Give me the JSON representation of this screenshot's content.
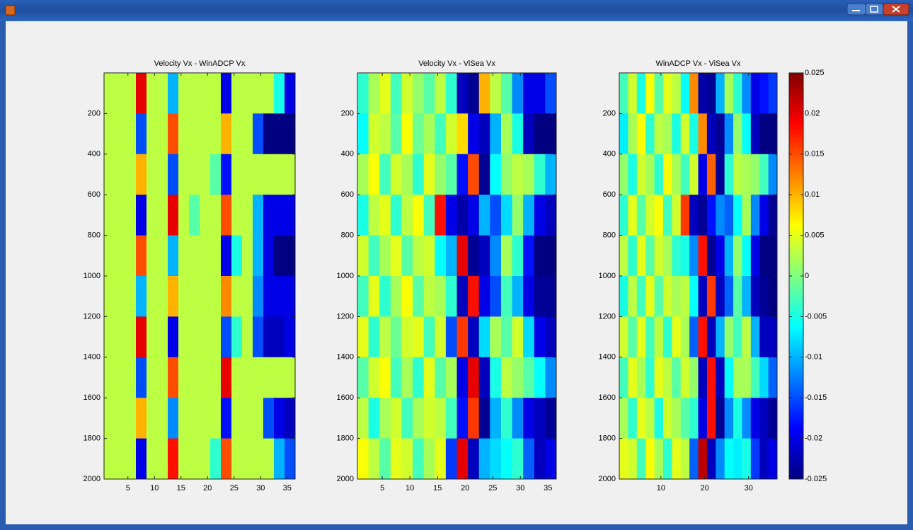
{
  "chart_data": [
    {
      "type": "heatmap",
      "title": "Velocity Vx - WinADCP Vx",
      "colormap": "jet",
      "clim": [
        -0.025,
        0.025
      ],
      "y_reversed": true,
      "xlim": [
        0.5,
        36.5
      ],
      "ylim": [
        0,
        2000
      ],
      "xticks": [
        5,
        10,
        15,
        20,
        25,
        30,
        35
      ],
      "yticks": [
        200,
        400,
        600,
        800,
        1000,
        1200,
        1400,
        1600,
        1800,
        2000
      ],
      "x": [
        1.5,
        3.5,
        5.5,
        7.5,
        9.5,
        11.5,
        13.5,
        15.5,
        17.5,
        19.5,
        21.5,
        23.5,
        25.5,
        27.5,
        29.5,
        31.5,
        33.5,
        35.5
      ],
      "y": [
        100,
        300,
        500,
        700,
        900,
        1100,
        1300,
        1500,
        1700,
        1900
      ],
      "values": [
        [
          0.003,
          0.003,
          0.003,
          0.02,
          0.003,
          0.003,
          -0.01,
          0.003,
          0.003,
          0.003,
          0.003,
          -0.02,
          0.003,
          0.003,
          0.003,
          0.003,
          -0.005,
          -0.02
        ],
        [
          0.003,
          0.003,
          0.003,
          -0.015,
          0.003,
          0.003,
          0.015,
          0.003,
          0.003,
          0.003,
          0.003,
          0.01,
          0.003,
          0.003,
          -0.015,
          -0.025,
          -0.025,
          -0.025
        ],
        [
          0.003,
          0.003,
          0.003,
          0.01,
          0.003,
          0.003,
          -0.015,
          0.003,
          0.003,
          0.003,
          -0.002,
          -0.018,
          0.003,
          0.003,
          0.003,
          0.003,
          0.003,
          0.003
        ],
        [
          0.003,
          0.003,
          0.003,
          -0.02,
          0.003,
          0.003,
          0.02,
          0.003,
          -0.002,
          0.003,
          0.003,
          0.015,
          0.003,
          0.003,
          -0.01,
          -0.02,
          -0.02,
          -0.02
        ],
        [
          0.003,
          0.003,
          0.003,
          0.015,
          0.003,
          0.003,
          -0.01,
          0.003,
          0.003,
          0.003,
          0.003,
          -0.02,
          -0.005,
          0.003,
          -0.01,
          -0.02,
          -0.025,
          -0.025
        ],
        [
          0.003,
          0.003,
          0.003,
          -0.01,
          0.003,
          0.003,
          0.01,
          0.003,
          0.003,
          0.003,
          0.003,
          0.012,
          0.003,
          0.003,
          -0.012,
          -0.02,
          -0.02,
          -0.02
        ],
        [
          0.003,
          0.003,
          0.003,
          0.02,
          0.003,
          0.003,
          -0.02,
          0.003,
          0.003,
          0.003,
          0.003,
          -0.015,
          -0.004,
          0.003,
          -0.015,
          -0.022,
          -0.022,
          -0.02
        ],
        [
          0.003,
          0.003,
          0.003,
          -0.015,
          0.003,
          0.003,
          0.015,
          0.003,
          0.003,
          0.003,
          0.003,
          0.02,
          0.003,
          0.003,
          0.003,
          0.003,
          0.003,
          0.003
        ],
        [
          0.003,
          0.003,
          0.003,
          0.01,
          0.003,
          0.003,
          -0.012,
          0.003,
          0.003,
          0.003,
          0.003,
          -0.018,
          0.003,
          0.003,
          0.003,
          -0.015,
          -0.02,
          -0.022
        ],
        [
          0.003,
          0.003,
          0.003,
          -0.02,
          0.003,
          0.003,
          0.018,
          0.003,
          0.003,
          0.003,
          -0.004,
          0.015,
          0.003,
          0.003,
          0.003,
          0.003,
          -0.01,
          -0.015
        ]
      ]
    },
    {
      "type": "heatmap",
      "title": "Velocity Vx - ViSea Vx",
      "colormap": "jet",
      "clim": [
        -0.025,
        0.025
      ],
      "y_reversed": true,
      "xlim": [
        0.5,
        36.5
      ],
      "ylim": [
        0,
        2000
      ],
      "xticks": [
        5,
        10,
        15,
        20,
        25,
        30,
        35
      ],
      "yticks": [
        200,
        400,
        600,
        800,
        1000,
        1200,
        1400,
        1600,
        1800,
        2000
      ],
      "x": [
        1.5,
        3.5,
        5.5,
        7.5,
        9.5,
        11.5,
        13.5,
        15.5,
        17.5,
        19.5,
        21.5,
        23.5,
        25.5,
        27.5,
        29.5,
        31.5,
        33.5,
        35.5
      ],
      "y": [
        100,
        300,
        500,
        700,
        900,
        1100,
        1300,
        1500,
        1700,
        1900
      ],
      "values": [
        [
          -0.004,
          0.002,
          0.005,
          -0.003,
          0.004,
          0.001,
          -0.002,
          0.003,
          -0.004,
          -0.022,
          -0.024,
          0.01,
          0.003,
          -0.002,
          -0.012,
          -0.02,
          -0.02,
          -0.015
        ],
        [
          -0.006,
          0.004,
          0.003,
          -0.002,
          0.006,
          -0.001,
          0.002,
          -0.003,
          0.004,
          0.008,
          -0.02,
          -0.022,
          -0.01,
          0.002,
          -0.005,
          -0.022,
          -0.025,
          -0.025
        ],
        [
          0.002,
          0.006,
          -0.003,
          0.004,
          0.002,
          -0.004,
          0.005,
          0.001,
          -0.002,
          -0.018,
          0.015,
          -0.024,
          -0.006,
          0.001,
          0.003,
          0.002,
          -0.004,
          -0.01
        ],
        [
          -0.005,
          0.003,
          0.005,
          -0.004,
          0.003,
          0.006,
          -0.003,
          0.018,
          -0.02,
          -0.023,
          -0.02,
          -0.01,
          -0.015,
          -0.008,
          0.001,
          -0.01,
          -0.02,
          -0.022
        ],
        [
          0.004,
          -0.003,
          0.002,
          0.005,
          -0.002,
          0.003,
          0.004,
          -0.006,
          -0.01,
          0.02,
          -0.024,
          -0.022,
          -0.012,
          0.002,
          -0.004,
          -0.018,
          -0.025,
          -0.025
        ],
        [
          -0.003,
          0.005,
          -0.004,
          0.002,
          0.006,
          -0.002,
          0.003,
          0.002,
          -0.004,
          -0.022,
          0.018,
          -0.02,
          -0.015,
          -0.003,
          -0.01,
          -0.02,
          -0.024,
          -0.024
        ],
        [
          0.005,
          -0.004,
          0.003,
          -0.001,
          0.004,
          0.005,
          -0.003,
          0.004,
          -0.015,
          0.016,
          -0.022,
          -0.008,
          0.002,
          -0.002,
          0.004,
          -0.008,
          -0.02,
          -0.022
        ],
        [
          -0.002,
          0.004,
          0.006,
          -0.003,
          0.002,
          -0.004,
          0.005,
          -0.002,
          0.002,
          -0.02,
          0.02,
          -0.022,
          -0.005,
          0.003,
          0.001,
          -0.002,
          -0.006,
          -0.012
        ],
        [
          0.003,
          -0.005,
          0.002,
          0.004,
          -0.003,
          0.002,
          0.004,
          0.003,
          -0.003,
          -0.018,
          0.016,
          -0.024,
          -0.01,
          -0.004,
          -0.012,
          -0.02,
          -0.022,
          -0.024
        ],
        [
          0.006,
          0.003,
          -0.002,
          0.005,
          0.004,
          -0.003,
          0.002,
          0.005,
          -0.016,
          0.02,
          -0.022,
          -0.01,
          -0.008,
          -0.006,
          -0.004,
          -0.014,
          -0.022,
          -0.02
        ]
      ]
    },
    {
      "type": "heatmap",
      "title": "WinADCP Vx - ViSea Vx",
      "colormap": "jet",
      "clim": [
        -0.025,
        0.025
      ],
      "y_reversed": true,
      "xlim": [
        0.5,
        36.5
      ],
      "ylim": [
        0,
        2000
      ],
      "xticks": [
        10,
        20,
        30
      ],
      "yticks": [
        200,
        400,
        600,
        800,
        1000,
        1200,
        1400,
        1600,
        1800,
        2000
      ],
      "cticks": [
        0.025,
        0.02,
        0.015,
        0.01,
        0.005,
        0,
        -0.005,
        -0.01,
        -0.015,
        -0.02,
        -0.025
      ],
      "x": [
        1.5,
        3.5,
        5.5,
        7.5,
        9.5,
        11.5,
        13.5,
        15.5,
        17.5,
        19.5,
        21.5,
        23.5,
        25.5,
        27.5,
        29.5,
        31.5,
        33.5,
        35.5
      ],
      "y": [
        100,
        300,
        500,
        700,
        900,
        1100,
        1300,
        1500,
        1700,
        1900
      ],
      "values": [
        [
          -0.003,
          0.004,
          -0.005,
          0.006,
          -0.002,
          0.005,
          0.003,
          -0.006,
          0.012,
          -0.023,
          -0.024,
          -0.01,
          0.002,
          -0.004,
          -0.012,
          -0.02,
          -0.018,
          -0.016
        ],
        [
          -0.007,
          0.002,
          0.006,
          -0.004,
          0.003,
          0.002,
          -0.005,
          0.004,
          -0.005,
          0.012,
          -0.022,
          -0.024,
          -0.012,
          0.001,
          -0.006,
          -0.022,
          -0.025,
          -0.025
        ],
        [
          0.001,
          -0.005,
          0.004,
          0.002,
          -0.004,
          0.006,
          0.002,
          -0.003,
          0.004,
          -0.02,
          0.014,
          -0.024,
          -0.004,
          0.003,
          0.002,
          0.001,
          -0.003,
          -0.012
        ],
        [
          -0.004,
          0.005,
          -0.002,
          0.004,
          0.006,
          -0.003,
          0.004,
          0.016,
          -0.022,
          -0.024,
          -0.018,
          -0.012,
          -0.014,
          -0.006,
          0.002,
          -0.012,
          -0.02,
          -0.024
        ],
        [
          0.003,
          -0.004,
          0.005,
          -0.002,
          0.004,
          0.002,
          -0.004,
          -0.005,
          -0.012,
          0.018,
          -0.024,
          -0.02,
          -0.01,
          0.001,
          -0.006,
          -0.02,
          -0.025,
          -0.025
        ],
        [
          -0.005,
          0.003,
          -0.003,
          0.005,
          -0.002,
          0.004,
          0.002,
          0.003,
          -0.006,
          -0.022,
          0.016,
          -0.022,
          -0.014,
          -0.002,
          -0.01,
          -0.022,
          -0.024,
          -0.025
        ],
        [
          0.004,
          -0.002,
          0.005,
          -0.003,
          0.003,
          -0.004,
          0.005,
          0.002,
          -0.014,
          0.018,
          -0.022,
          -0.01,
          0.001,
          -0.003,
          0.003,
          -0.01,
          -0.022,
          -0.022
        ],
        [
          -0.003,
          0.005,
          0.002,
          -0.004,
          0.005,
          0.003,
          -0.002,
          0.004,
          0.001,
          -0.022,
          0.018,
          -0.022,
          -0.006,
          0.002,
          0.002,
          -0.003,
          -0.008,
          -0.014
        ],
        [
          0.002,
          -0.004,
          0.005,
          0.003,
          -0.005,
          0.004,
          0.002,
          -0.002,
          -0.004,
          -0.02,
          0.018,
          -0.024,
          -0.012,
          -0.005,
          -0.012,
          -0.02,
          -0.022,
          -0.024
        ],
        [
          0.005,
          0.004,
          -0.003,
          0.006,
          0.002,
          -0.004,
          0.005,
          0.003,
          -0.014,
          0.022,
          -0.022,
          -0.012,
          -0.006,
          -0.007,
          -0.005,
          -0.016,
          -0.022,
          -0.02
        ]
      ]
    }
  ]
}
